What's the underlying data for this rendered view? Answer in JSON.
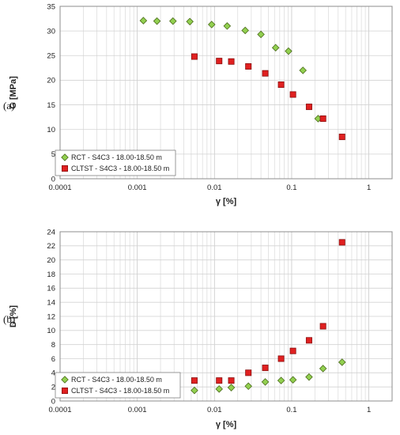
{
  "colors": {
    "rct": "#92d050",
    "cltst": "#e02020"
  },
  "chart_data": [
    {
      "type": "scatter",
      "panel": "(a)",
      "xlabel": "γ [%]",
      "ylabel": "G [MPa]",
      "xscale": "log",
      "xlim": [
        0.0001,
        2
      ],
      "ylim": [
        0,
        35
      ],
      "x_ticks": [
        "0.0001",
        "0.001",
        "0.01",
        "0.1",
        "1"
      ],
      "y_ticks": [
        "0",
        "5",
        "10",
        "15",
        "20",
        "25",
        "30",
        "35"
      ],
      "grid": true,
      "legend": "bottom-left",
      "series": [
        {
          "name": "RCT - S4C3 - 18.00-18.50 m",
          "marker": "diamond",
          "x": [
            0.0012,
            0.0018,
            0.0029,
            0.0048,
            0.0092,
            0.0146,
            0.025,
            0.04,
            0.062,
            0.091,
            0.14,
            0.22
          ],
          "y": [
            32.1,
            32.0,
            32.0,
            31.9,
            31.3,
            31.0,
            30.1,
            29.3,
            26.6,
            25.9,
            22.0,
            12.2
          ]
        },
        {
          "name": "CLTST - S4C3 - 18.00-18.50 m",
          "marker": "square",
          "x": [
            0.0055,
            0.0115,
            0.0165,
            0.0275,
            0.0455,
            0.073,
            0.104,
            0.168,
            0.255,
            0.45
          ],
          "y": [
            24.8,
            23.9,
            23.8,
            22.8,
            21.4,
            19.1,
            17.1,
            14.6,
            12.2,
            8.5
          ]
        }
      ]
    },
    {
      "type": "scatter",
      "panel": "(b)",
      "xlabel": "γ [%]",
      "ylabel": "D [%]",
      "xscale": "log",
      "xlim": [
        0.0001,
        2
      ],
      "ylim": [
        0,
        24
      ],
      "x_ticks": [
        "0.0001",
        "0.001",
        "0.01",
        "0.1",
        "1"
      ],
      "y_ticks": [
        "0",
        "2",
        "4",
        "6",
        "8",
        "10",
        "12",
        "14",
        "16",
        "18",
        "20",
        "22",
        "24"
      ],
      "grid": true,
      "legend": "bottom-left",
      "series": [
        {
          "name": "RCT - S4C3 - 18.00-18.50 m",
          "marker": "diamond",
          "x": [
            0.0055,
            0.0115,
            0.0165,
            0.0275,
            0.0455,
            0.073,
            0.104,
            0.168,
            0.255,
            0.45
          ],
          "y": [
            1.5,
            1.7,
            1.9,
            2.1,
            2.7,
            2.9,
            3.0,
            3.4,
            4.6,
            5.5
          ]
        },
        {
          "name": "CLTST - S4C3 - 18.00-18.50 m",
          "marker": "square",
          "x": [
            0.0055,
            0.0115,
            0.0165,
            0.0275,
            0.0455,
            0.073,
            0.104,
            0.168,
            0.255,
            0.45
          ],
          "y": [
            2.9,
            2.9,
            2.9,
            4.0,
            4.7,
            6.0,
            7.1,
            8.6,
            10.6,
            22.5
          ]
        }
      ]
    }
  ]
}
